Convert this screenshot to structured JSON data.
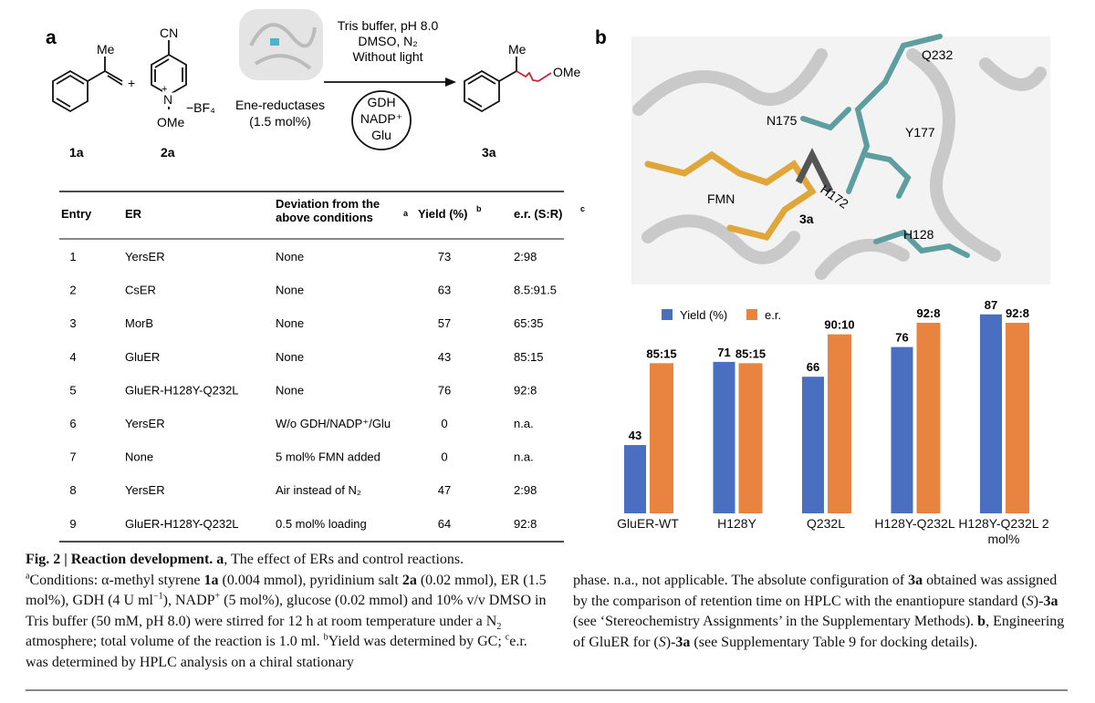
{
  "panel_a": {
    "label": "a",
    "scheme": {
      "me_1a": "Me",
      "cn": "CN",
      "plus": "+",
      "n": "N",
      "n_charge": "+",
      "bf4": "−BF₄",
      "ome_2a": "OMe",
      "enzyme": "Ene-reductases",
      "enzyme_loading": "(1.5 mol%)",
      "conditions": [
        "Tris buffer, pH 8.0",
        "DMSO, N₂",
        "Without light"
      ],
      "cycle": [
        "GDH",
        "NADP⁺",
        "Glu"
      ],
      "me_3a": "Me",
      "ome_3a": "OMe",
      "compounds": [
        "1a",
        "2a",
        "3a"
      ]
    },
    "table": {
      "headers": [
        "Entry",
        "ER",
        "Deviation from the above conditions",
        "Yield (%)",
        "e.r. (S:R)"
      ],
      "header_notes": [
        "a",
        "b",
        "c"
      ],
      "rows": [
        [
          1,
          "YersER",
          "None",
          73,
          "2:98"
        ],
        [
          2,
          "CsER",
          "None",
          63,
          "8.5:91.5"
        ],
        [
          3,
          "MorB",
          "None",
          57,
          "65:35"
        ],
        [
          4,
          "GluER",
          "None",
          43,
          "85:15"
        ],
        [
          5,
          "GluER-H128Y-Q232L",
          "None",
          76,
          "92:8"
        ],
        [
          6,
          "YersER",
          "W/o GDH/NADP⁺/Glu",
          0,
          "n.a."
        ],
        [
          7,
          "None",
          "5 mol% FMN added",
          0,
          "n.a."
        ],
        [
          8,
          "YersER",
          "Air instead of N₂",
          47,
          "2:98"
        ],
        [
          9,
          "GluER-H128Y-Q232L",
          "0.5 mol% loading",
          64,
          "92:8"
        ]
      ]
    }
  },
  "panel_b": {
    "label": "b",
    "labels": [
      "Q232",
      "N175",
      "Y177",
      "H172",
      "FMN",
      "3a",
      "H128"
    ]
  },
  "chart_data": {
    "type": "bar",
    "categories": [
      "GluER-WT",
      "H128Y",
      "Q232L",
      "H128Y-Q232L",
      "H128Y-Q232L 2 mol%"
    ],
    "series": [
      {
        "name": "Yield (%)",
        "color": "#4a6fc1",
        "values": [
          43,
          71,
          66,
          76,
          87
        ]
      },
      {
        "name": "e.r.",
        "color": "#e8843f",
        "axis": "y2",
        "values": [
          85,
          85,
          90,
          92,
          92
        ],
        "value_labels": [
          "85:15",
          "85:15",
          "90:10",
          "92:8",
          "92:8"
        ]
      }
    ],
    "ylim": [
      20,
      90
    ],
    "y2lim": [
      59,
      95
    ],
    "legend": "top"
  },
  "caption": {
    "left": [
      "Fig. 2 | Reaction development. a",
      ", The effect of ERs and control reactions.",
      "a",
      "Conditions: α-methyl styrene ",
      "1a",
      " (0.004 mmol), pyridinium salt ",
      "2a",
      " (0.02 mmol), ER (1.5 mol%), GDH (4 U ml",
      "−1",
      "), NADP",
      "+",
      " (5 mol%), glucose (0.02 mmol) and 10% v/v DMSO in Tris buffer (50 mM, pH 8.0) were stirred for 12 h at room temperature under a N",
      "2",
      " atmosphere; total volume of the reaction is 1.0 ml. ",
      "b",
      "Yield was determined by GC; ",
      "c",
      "e.r. was determined by HPLC analysis on a chiral stationary"
    ],
    "right": [
      "phase. n.a., not applicable. The absolute configuration of ",
      "3a",
      " obtained was assigned by the comparison of retention time on HPLC with the enantiopure standard (",
      "S",
      ")-",
      "3a",
      " (see ‘Stereochemistry Assignments’ in the Supplementary Methods). ",
      "b",
      ", Engineering of GluER for (",
      "S",
      ")-",
      "3a",
      " (see Supplementary Table 9 for docking details)."
    ]
  }
}
